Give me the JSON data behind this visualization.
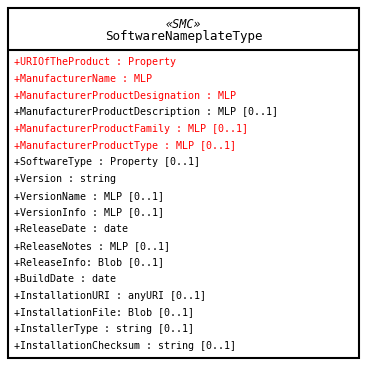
{
  "stereotype": "«SMC»",
  "classname": "SoftwareNameplateType",
  "header_fontsize": 8.5,
  "body_fontsize": 7.2,
  "red_color": "#ff0000",
  "black_color": "#000000",
  "bg_color": "#ffffff",
  "border_color": "#000000",
  "fig_width": 3.67,
  "fig_height": 3.66,
  "dpi": 100,
  "attributes": [
    {
      "text": "+URIOfTheProduct : Property",
      "color": "#ff0000"
    },
    {
      "text": "+ManufacturerName : MLP",
      "color": "#ff0000"
    },
    {
      "text": "+ManufacturerProductDesignation : MLP",
      "color": "#ff0000"
    },
    {
      "text": "+ManufacturerProductDescription : MLP [0..1]",
      "color": "#000000"
    },
    {
      "text": "+ManufacturerProductFamily : MLP [0..1]",
      "color": "#ff0000"
    },
    {
      "text": "+ManufacturerProductType : MLP [0..1]",
      "color": "#ff0000"
    },
    {
      "text": "+SoftwareType : Property [0..1]",
      "color": "#000000"
    },
    {
      "text": "+Version : string",
      "color": "#000000"
    },
    {
      "text": "+VersionName : MLP [0..1]",
      "color": "#000000"
    },
    {
      "text": "+VersionInfo : MLP [0..1]",
      "color": "#000000"
    },
    {
      "text": "+ReleaseDate : date",
      "color": "#000000"
    },
    {
      "text": "+ReleaseNotes : MLP [0..1]",
      "color": "#000000"
    },
    {
      "text": "+ReleaseInfo: Blob [0..1]",
      "color": "#000000"
    },
    {
      "text": "+BuildDate : date",
      "color": "#000000"
    },
    {
      "text": "+InstallationURI : anyURI [0..1]",
      "color": "#000000"
    },
    {
      "text": "+InstallationFile: Blob [0..1]",
      "color": "#000000"
    },
    {
      "text": "+InstallerType : string [0..1]",
      "color": "#000000"
    },
    {
      "text": "+InstallationChecksum : string [0..1]",
      "color": "#000000"
    }
  ]
}
